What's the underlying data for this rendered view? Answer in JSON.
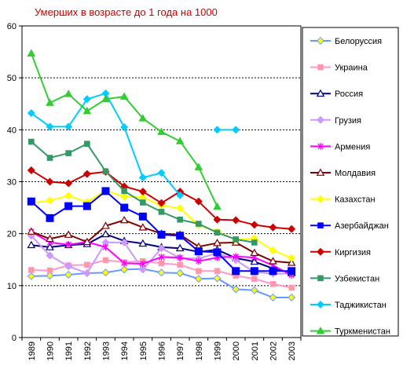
{
  "chart_data": {
    "type": "line",
    "title": "Умерших в возрасте до 1 года на 1000",
    "xlabel": "",
    "ylabel": "",
    "x": [
      "1989",
      "1990",
      "1991",
      "1992",
      "1993",
      "1994",
      "1995",
      "1996",
      "1997",
      "1998",
      "1999",
      "2000",
      "2001",
      "2002",
      "2003"
    ],
    "ylim": [
      0,
      60
    ],
    "yticks": [
      0,
      10,
      20,
      30,
      40,
      50,
      60
    ],
    "grid": "horizontal dashed",
    "legend_position": "right",
    "series": [
      {
        "name": "Белоруссия",
        "color": "#6699ff",
        "marker": "diamond",
        "markerFill": "#ffff00",
        "values": [
          11.8,
          11.9,
          12.1,
          12.4,
          12.5,
          13.1,
          13.2,
          12.5,
          12.4,
          11.3,
          11.4,
          9.3,
          9.1,
          7.7,
          7.7
        ]
      },
      {
        "name": "Украина",
        "color": "#ff99cc",
        "marker": "square",
        "markerFill": "#ff9999",
        "values": [
          13.0,
          12.9,
          13.9,
          14.0,
          14.9,
          14.5,
          14.7,
          14.3,
          14.0,
          12.8,
          12.8,
          11.9,
          11.3,
          10.3,
          9.6
        ]
      },
      {
        "name": "Россия",
        "color": "#000080",
        "marker": "triangle",
        "markerFill": "#ffffff",
        "values": [
          17.8,
          17.4,
          17.8,
          18.0,
          19.9,
          18.6,
          18.1,
          17.4,
          17.2,
          16.5,
          16.9,
          15.3,
          14.6,
          13.3,
          12.4
        ]
      },
      {
        "name": "Грузия",
        "color": "#cc99ff",
        "marker": "diamond",
        "markerFill": "#cc99ff",
        "values": [
          19.6,
          15.8,
          13.7,
          12.4,
          18.3,
          18.3,
          13.1,
          17.2,
          15.3,
          15.2,
          16.3,
          14.9,
          12.6,
          12.3,
          12.3
        ]
      },
      {
        "name": "Армения",
        "color": "#ff00ff",
        "marker": "star",
        "markerFill": "#ff00ff",
        "values": [
          20.4,
          18.3,
          17.9,
          18.4,
          17.4,
          14.3,
          14.2,
          15.5,
          15.4,
          14.7,
          15.4,
          15.6,
          15.4,
          13.9,
          12.0
        ]
      },
      {
        "name": "Молдавия",
        "color": "#800000",
        "marker": "triangle",
        "markerFill": "#ffffff",
        "values": [
          20.4,
          19.0,
          19.8,
          18.4,
          21.5,
          22.6,
          21.2,
          20.0,
          19.8,
          17.5,
          18.2,
          18.3,
          16.3,
          14.7,
          14.4
        ]
      },
      {
        "name": "Казахстан",
        "color": "#ffff00",
        "marker": "diamond",
        "markerFill": "#ffff00",
        "values": [
          25.9,
          26.4,
          27.3,
          26.1,
          28.3,
          27.1,
          27.0,
          25.4,
          24.9,
          21.6,
          20.4,
          18.8,
          19.1,
          16.8,
          15.3
        ]
      },
      {
        "name": "Азербайджан",
        "color": "#0000ff",
        "marker": "square",
        "markerFill": "#0000ff",
        "values": [
          26.2,
          23.0,
          25.3,
          25.3,
          28.2,
          25.0,
          23.3,
          19.8,
          19.6,
          16.6,
          16.4,
          12.8,
          12.8,
          12.8,
          12.8
        ]
      },
      {
        "name": "Киргизия",
        "color": "#cc0000",
        "marker": "diamond",
        "markerFill": "#cc0000",
        "values": [
          32.2,
          30.0,
          29.7,
          31.5,
          31.9,
          29.1,
          28.1,
          25.9,
          28.1,
          26.2,
          22.7,
          22.6,
          21.7,
          21.2,
          20.9
        ]
      },
      {
        "name": "Узбекистан",
        "color": "#339966",
        "marker": "square",
        "markerFill": "#339966",
        "values": [
          37.7,
          34.6,
          35.5,
          37.3,
          32.0,
          28.2,
          26.0,
          24.2,
          22.7,
          21.9,
          20.2,
          18.9,
          18.3,
          null,
          null
        ]
      },
      {
        "name": "Таджикистан",
        "color": "#00ccff",
        "marker": "diamond",
        "markerFill": "#00ccff",
        "values": [
          43.2,
          40.6,
          40.6,
          45.9,
          47.0,
          40.5,
          30.8,
          31.7,
          27.4,
          null,
          40.0,
          40.0,
          null,
          null,
          null
        ]
      },
      {
        "name": "Туркменистан",
        "color": "#33cc33",
        "marker": "triangle",
        "markerFill": "#33cc33",
        "values": [
          54.7,
          45.2,
          46.9,
          43.6,
          45.9,
          46.4,
          42.2,
          39.6,
          37.8,
          32.8,
          25.2,
          null,
          null,
          null,
          null
        ]
      }
    ]
  }
}
